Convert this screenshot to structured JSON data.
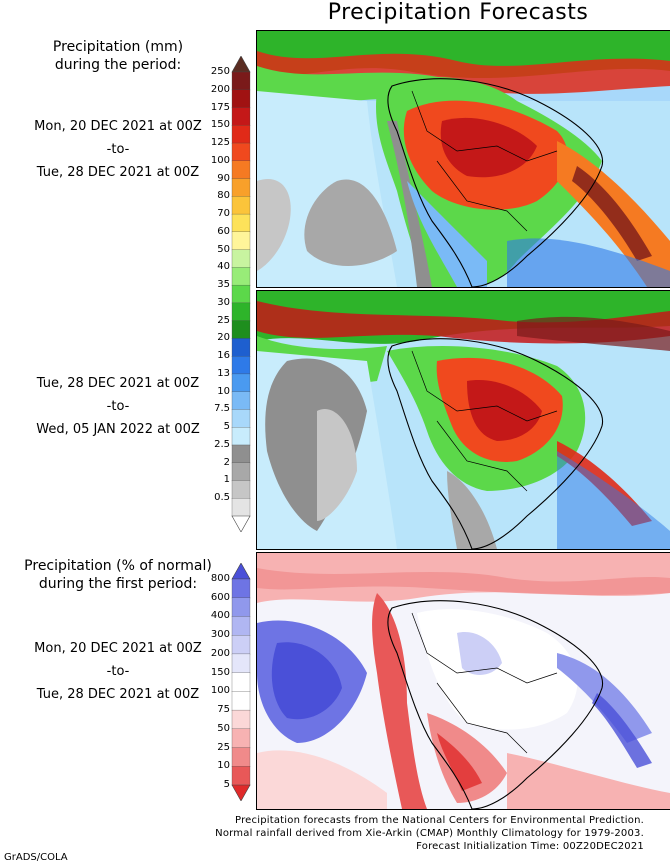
{
  "title": "Precipitation Forecasts",
  "panel1": {
    "header_line1": "Precipitation (mm)",
    "header_line2": "during the period:",
    "start": "Mon, 20 DEC 2021 at 00Z",
    "sep": "-to-",
    "end": "Tue, 28 DEC 2021 at 00Z"
  },
  "panel2": {
    "start": "Tue, 28 DEC 2021 at 00Z",
    "sep": "-to-",
    "end": "Wed, 05 JAN 2022 at 00Z"
  },
  "panel3": {
    "header_line1": "Precipitation (% of normal)",
    "header_line2": "during the first period:",
    "start": "Mon, 20 DEC 2021 at 00Z",
    "sep": "-to-",
    "end": "Tue, 28 DEC 2021 at 00Z"
  },
  "mm_scale": {
    "labels": [
      "250",
      "200",
      "175",
      "150",
      "125",
      "100",
      "90",
      "80",
      "70",
      "60",
      "50",
      "40",
      "35",
      "30",
      "25",
      "20",
      "16",
      "13",
      "10",
      "7.5",
      "5",
      "2.5",
      "2",
      "1",
      "0.5"
    ],
    "colors": [
      "#5b2d22",
      "#7a1a1a",
      "#a01212",
      "#c41818",
      "#e02a18",
      "#f0491e",
      "#f57a22",
      "#f8a02a",
      "#fbc43a",
      "#fde25a",
      "#fff59a",
      "#c8f4a0",
      "#98ec78",
      "#5cd84a",
      "#2eb42a",
      "#1e8e1e",
      "#1e5fcf",
      "#2e7ae8",
      "#4a9af0",
      "#7abaf6",
      "#a8d8fa",
      "#c8ecfc",
      "#8f8f8f",
      "#a8a8a8",
      "#c6c6c6",
      "#e4e4e4",
      "#ffffff"
    ]
  },
  "pct_scale": {
    "labels": [
      "800",
      "600",
      "400",
      "300",
      "200",
      "150",
      "100",
      "75",
      "50",
      "25",
      "10",
      "5"
    ],
    "colors": [
      "#4a50d8",
      "#6e74e4",
      "#9098ec",
      "#b0b6f2",
      "#cccff6",
      "#e4e6fa",
      "#ffffff",
      "#ffffff",
      "#fbd8d8",
      "#f7b2b2",
      "#f08a8a",
      "#e85858",
      "#e02a2a"
    ]
  },
  "footer": {
    "line1": "Precipitation forecasts from the National Centers for Environmental Prediction.",
    "line2": "Normal rainfall derived from Xie-Arkin (CMAP) Monthly Climatology for 1979-2003.",
    "line3": "Forecast Initialization Time: 00Z20DEC2021"
  },
  "credit": "GrADS/COLA"
}
